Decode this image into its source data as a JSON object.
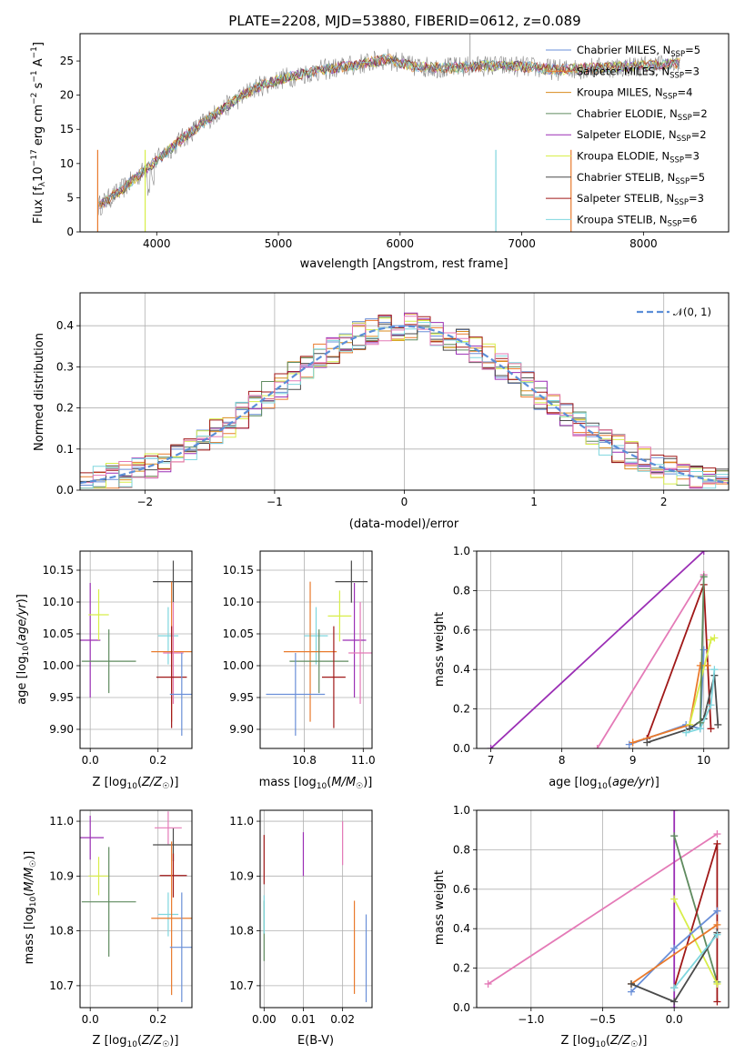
{
  "colors": {
    "Chabrier MILES": "#6a8fd8",
    "Salpeter MILES": "#e97a2c",
    "Kroupa MILES": "#d98b1e",
    "Chabrier ELODIE": "#5f8b5f",
    "Salpeter ELODIE": "#9b2fb5",
    "Kroupa ELODIE": "#d8ee4a",
    "Chabrier STELIB": "#4a4a4a",
    "Salpeter STELIB": "#a01818",
    "Kroupa STELIB": "#7ed6de",
    "pink": "#e47ab7",
    "gauss": "#5b8ed8"
  },
  "chart_data": [
    {
      "id": "spectrum",
      "type": "line",
      "title": "PLATE=2208, MJD=53880, FIBERID=0612, z=0.089",
      "xlabel": "wavelength [Angstrom, rest frame]",
      "ylabel": "Flux [f_λ10^-17 erg cm^-2 s^-1 A^-1]",
      "xlim": [
        3370,
        8700
      ],
      "ylim": [
        0,
        29
      ],
      "xticks": [
        4000,
        5000,
        6000,
        7000,
        8000
      ],
      "yticks": [
        0,
        5,
        10,
        15,
        20,
        25
      ],
      "legend": [
        {
          "label": "Chabrier MILES, N",
          "sub": "SSP",
          "post": "=5"
        },
        {
          "label": "Salpeter MILES, N",
          "sub": "SSP",
          "post": "=3"
        },
        {
          "label": "Kroupa MILES, N",
          "sub": "SSP",
          "post": "=4"
        },
        {
          "label": "Chabrier ELODIE, N",
          "sub": "SSP",
          "post": "=2"
        },
        {
          "label": "Salpeter ELODIE, N",
          "sub": "SSP",
          "post": "=2"
        },
        {
          "label": "Kroupa ELODIE, N",
          "sub": "SSP",
          "post": "=3"
        },
        {
          "label": "Chabrier STELIB, N",
          "sub": "SSP",
          "post": "=5"
        },
        {
          "label": "Salpeter STELIB, N",
          "sub": "SSP",
          "post": "=3"
        },
        {
          "label": "Kroupa STELIB, N",
          "sub": "SSP",
          "post": "=6"
        }
      ],
      "continuum": {
        "x": [
          3500,
          3700,
          3900,
          4000,
          4200,
          4500,
          4800,
          5000,
          5300,
          5600,
          5900,
          6100,
          6400,
          6700,
          7000,
          7300,
          7600,
          7900,
          8200,
          8300
        ],
        "y": [
          3.5,
          6,
          9,
          10.5,
          13.5,
          17.5,
          21,
          22.3,
          23.5,
          24.3,
          25.3,
          24.2,
          24.0,
          24.3,
          24.2,
          23.7,
          24.0,
          24.2,
          24.5,
          24.7
        ]
      }
    },
    {
      "id": "residuals",
      "type": "histogram",
      "xlabel": "(data-model)/error",
      "ylabel": "Normed distribution",
      "xlim": [
        -2.5,
        2.5
      ],
      "ylim": [
        0,
        0.48
      ],
      "xticks": [
        -2,
        -1,
        0,
        1,
        2
      ],
      "yticks": [
        0.0,
        0.1,
        0.2,
        0.3,
        0.4
      ],
      "legend": "𝒩(0, 1)"
    },
    {
      "id": "age-vs-Z",
      "type": "scatter",
      "xlabel": "Z [log10(Z/Z☉)]",
      "ylabel": "age [log10(age/yr)]",
      "xlim": [
        -0.03,
        0.3
      ],
      "ylim": [
        9.87,
        10.18
      ],
      "xticks": [
        0.0,
        0.2
      ],
      "yticks": [
        9.9,
        9.95,
        10.0,
        10.05,
        10.1,
        10.15
      ],
      "points": [
        {
          "m": "Salpeter ELODIE",
          "x": 0.0,
          "y": 10.04,
          "xe": 0.03,
          "ye": 0.09
        },
        {
          "m": "Kroupa ELODIE",
          "x": 0.025,
          "y": 10.08,
          "xe": 0.03,
          "ye": 0.04
        },
        {
          "m": "Chabrier ELODIE",
          "x": 0.055,
          "y": 10.007,
          "xe": 0.08,
          "ye": 0.05
        },
        {
          "m": "Chabrier STELIB",
          "x": 0.245,
          "y": 10.132,
          "xe": 0.06,
          "ye": 0.033
        },
        {
          "m": "Kroupa STELIB",
          "x": 0.23,
          "y": 10.047,
          "xe": 0.03,
          "ye": 0.045
        },
        {
          "m": "Salpeter MILES",
          "x": 0.24,
          "y": 10.022,
          "xe": 0.06,
          "ye": 0.11
        },
        {
          "m": "pink",
          "x": 0.245,
          "y": 10.02,
          "xe": 0.03,
          "ye": 0.08
        },
        {
          "m": "Salpeter STELIB",
          "x": 0.24,
          "y": 9.982,
          "xe": 0.045,
          "ye": 0.08
        },
        {
          "m": "Chabrier MILES",
          "x": 0.27,
          "y": 9.955,
          "xe": 0.035,
          "ye": 0.065
        }
      ]
    },
    {
      "id": "age-vs-mass",
      "type": "scatter",
      "xlabel": "mass [log10(M/M☉)]",
      "ylabel": "",
      "xlim": [
        10.65,
        11.03
      ],
      "ylim": [
        9.87,
        10.18
      ],
      "xticks": [
        10.8,
        11.0
      ],
      "yticks": [
        9.9,
        9.95,
        10.0,
        10.05,
        10.1,
        10.15
      ],
      "points": [
        {
          "m": "Kroupa ELODIE",
          "x": 10.92,
          "y": 10.078,
          "xe": 0.04,
          "ye": 0.04
        },
        {
          "m": "Salpeter ELODIE",
          "x": 10.97,
          "y": 10.04,
          "xe": 0.04,
          "ye": 0.09
        },
        {
          "m": "Chabrier STELIB",
          "x": 10.96,
          "y": 10.132,
          "xe": 0.055,
          "ye": 0.033
        },
        {
          "m": "Kroupa STELIB",
          "x": 10.84,
          "y": 10.047,
          "xe": 0.04,
          "ye": 0.045
        },
        {
          "m": "Salpeter MILES",
          "x": 10.82,
          "y": 10.022,
          "xe": 0.09,
          "ye": 0.11
        },
        {
          "m": "Chabrier ELODIE",
          "x": 10.85,
          "y": 10.007,
          "xe": 0.1,
          "ye": 0.05
        },
        {
          "m": "pink",
          "x": 10.99,
          "y": 10.02,
          "xe": 0.04,
          "ye": 0.08
        },
        {
          "m": "Salpeter STELIB",
          "x": 10.9,
          "y": 9.982,
          "xe": 0.04,
          "ye": 0.08
        },
        {
          "m": "Chabrier MILES",
          "x": 10.77,
          "y": 9.955,
          "xe": 0.1,
          "ye": 0.065
        }
      ]
    },
    {
      "id": "mass-weight-vs-age",
      "type": "line",
      "xlabel": "age [log10(age/yr)]",
      "ylabel": "mass weight",
      "xlim": [
        6.8,
        10.35
      ],
      "ylim": [
        0,
        1
      ],
      "xticks": [
        7,
        8,
        9,
        10
      ],
      "yticks": [
        0.0,
        0.2,
        0.4,
        0.6,
        0.8,
        1.0
      ],
      "series": [
        {
          "m": "Salpeter ELODIE",
          "x": [
            7.0,
            10.0
          ],
          "y": [
            0.0,
            1.0
          ]
        },
        {
          "m": "pink",
          "x": [
            8.5,
            10.0
          ],
          "y": [
            0.0,
            0.88
          ]
        },
        {
          "m": "Salpeter STELIB",
          "x": [
            9.2,
            10.0,
            10.1
          ],
          "y": [
            0.05,
            0.83,
            0.1
          ]
        },
        {
          "m": "Chabrier MILES",
          "x": [
            8.95,
            9.75,
            9.95,
            10.0
          ],
          "y": [
            0.02,
            0.12,
            0.1,
            0.5
          ]
        },
        {
          "m": "Salpeter MILES",
          "x": [
            9.0,
            9.8,
            9.95,
            10.05
          ],
          "y": [
            0.03,
            0.12,
            0.42,
            0.42
          ]
        },
        {
          "m": "Kroupa ELODIE",
          "x": [
            9.8,
            10.1,
            10.15
          ],
          "y": [
            0.12,
            0.55,
            0.56
          ]
        },
        {
          "m": "Chabrier STELIB",
          "x": [
            9.2,
            9.8,
            10.0,
            10.15,
            10.2
          ],
          "y": [
            0.03,
            0.1,
            0.15,
            0.37,
            0.12
          ]
        },
        {
          "m": "Kroupa STELIB",
          "x": [
            9.75,
            9.95,
            10.1,
            10.15
          ],
          "y": [
            0.08,
            0.1,
            0.22,
            0.4
          ]
        },
        {
          "m": "Chabrier ELODIE",
          "x": [
            9.95,
            10.0
          ],
          "y": [
            0.13,
            0.87
          ]
        }
      ]
    },
    {
      "id": "mass-vs-Z",
      "type": "scatter",
      "xlabel": "Z [log10(Z/Z☉)]",
      "ylabel": "mass [log10(M/M☉)]",
      "xlim": [
        -0.03,
        0.3
      ],
      "ylim": [
        10.66,
        11.02
      ],
      "xticks": [
        0.0,
        0.2
      ],
      "yticks": [
        10.7,
        10.8,
        10.9,
        11.0
      ],
      "points": [
        {
          "m": "Salpeter ELODIE",
          "x": 0.0,
          "y": 10.97,
          "xe": 0.04,
          "ye": 0.04
        },
        {
          "m": "Kroupa ELODIE",
          "x": 0.025,
          "y": 10.9,
          "xe": 0.03,
          "ye": 0.035
        },
        {
          "m": "Chabrier ELODIE",
          "x": 0.055,
          "y": 10.853,
          "xe": 0.08,
          "ye": 0.1
        },
        {
          "m": "pink",
          "x": 0.23,
          "y": 10.988,
          "xe": 0.04,
          "ye": 0.03
        },
        {
          "m": "Chabrier STELIB",
          "x": 0.245,
          "y": 10.957,
          "xe": 0.06,
          "ye": 0.03
        },
        {
          "m": "Salpeter STELIB",
          "x": 0.245,
          "y": 10.901,
          "xe": 0.04,
          "ye": 0.04
        },
        {
          "m": "Kroupa STELIB",
          "x": 0.23,
          "y": 10.83,
          "xe": 0.03,
          "ye": 0.04
        },
        {
          "m": "Salpeter MILES",
          "x": 0.24,
          "y": 10.823,
          "xe": 0.06,
          "ye": 0.14
        },
        {
          "m": "Chabrier MILES",
          "x": 0.27,
          "y": 10.77,
          "xe": 0.035,
          "ye": 0.1
        }
      ]
    },
    {
      "id": "mass-vs-ebv",
      "type": "scatter",
      "xlabel": "E(B-V)",
      "ylabel": "",
      "xlim": [
        -0.001,
        0.0275
      ],
      "ylim": [
        10.66,
        11.02
      ],
      "xticks": [
        0.0,
        0.01,
        0.02
      ],
      "yticks": [
        10.7,
        10.8,
        10.9,
        11.0
      ],
      "points": [
        {
          "m": "Salpeter STELIB",
          "x": 0.0,
          "y": 10.93,
          "xe": 0,
          "ye": 0.045
        },
        {
          "m": "Chabrier ELODIE",
          "x": 0.0,
          "y": 10.8,
          "xe": 0,
          "ye": 0.055
        },
        {
          "m": "Kroupa STELIB",
          "x": 0.0,
          "y": 10.83,
          "xe": 0,
          "ye": 0.035
        },
        {
          "m": "Salpeter ELODIE",
          "x": 0.01,
          "y": 10.94,
          "xe": 0,
          "ye": 0.04
        },
        {
          "m": "pink",
          "x": 0.02,
          "y": 10.96,
          "xe": 0,
          "ye": 0.04
        },
        {
          "m": "Salpeter MILES",
          "x": 0.023,
          "y": 10.77,
          "xe": 0,
          "ye": 0.085
        },
        {
          "m": "Chabrier MILES",
          "x": 0.026,
          "y": 10.75,
          "xe": 0,
          "ye": 0.08
        }
      ]
    },
    {
      "id": "mass-weight-vs-Z",
      "type": "line",
      "xlabel": "Z [log10(Z/Z☉)]",
      "ylabel": "mass weight",
      "xlim": [
        -1.38,
        0.38
      ],
      "ylim": [
        0,
        1
      ],
      "xticks": [
        -1.0,
        -0.5,
        0.0
      ],
      "yticks": [
        0.0,
        0.2,
        0.4,
        0.6,
        0.8,
        1.0
      ],
      "series": [
        {
          "m": "pink",
          "x": [
            -1.3,
            0.3
          ],
          "y": [
            0.12,
            0.88
          ]
        },
        {
          "m": "Salpeter ELODIE",
          "x": [
            0.0,
            0.0
          ],
          "y": [
            0.0,
            1.0
          ]
        },
        {
          "m": "Chabrier ELODIE",
          "x": [
            0.0,
            0.3
          ],
          "y": [
            0.87,
            0.13
          ]
        },
        {
          "m": "Salpeter STELIB",
          "x": [
            0.0,
            0.3,
            0.3
          ],
          "y": [
            0.1,
            0.83,
            0.03
          ]
        },
        {
          "m": "Kroupa ELODIE",
          "x": [
            0.0,
            0.3
          ],
          "y": [
            0.55,
            0.12
          ]
        },
        {
          "m": "Chabrier MILES",
          "x": [
            -0.3,
            0.0,
            0.3
          ],
          "y": [
            0.08,
            0.3,
            0.49
          ]
        },
        {
          "m": "Salpeter MILES",
          "x": [
            -0.3,
            0.3
          ],
          "y": [
            0.12,
            0.42
          ]
        },
        {
          "m": "Chabrier STELIB",
          "x": [
            -0.3,
            0.0,
            0.3
          ],
          "y": [
            0.12,
            0.03,
            0.38
          ]
        },
        {
          "m": "Kroupa STELIB",
          "x": [
            0.0,
            0.3
          ],
          "y": [
            0.1,
            0.37
          ]
        }
      ]
    }
  ]
}
